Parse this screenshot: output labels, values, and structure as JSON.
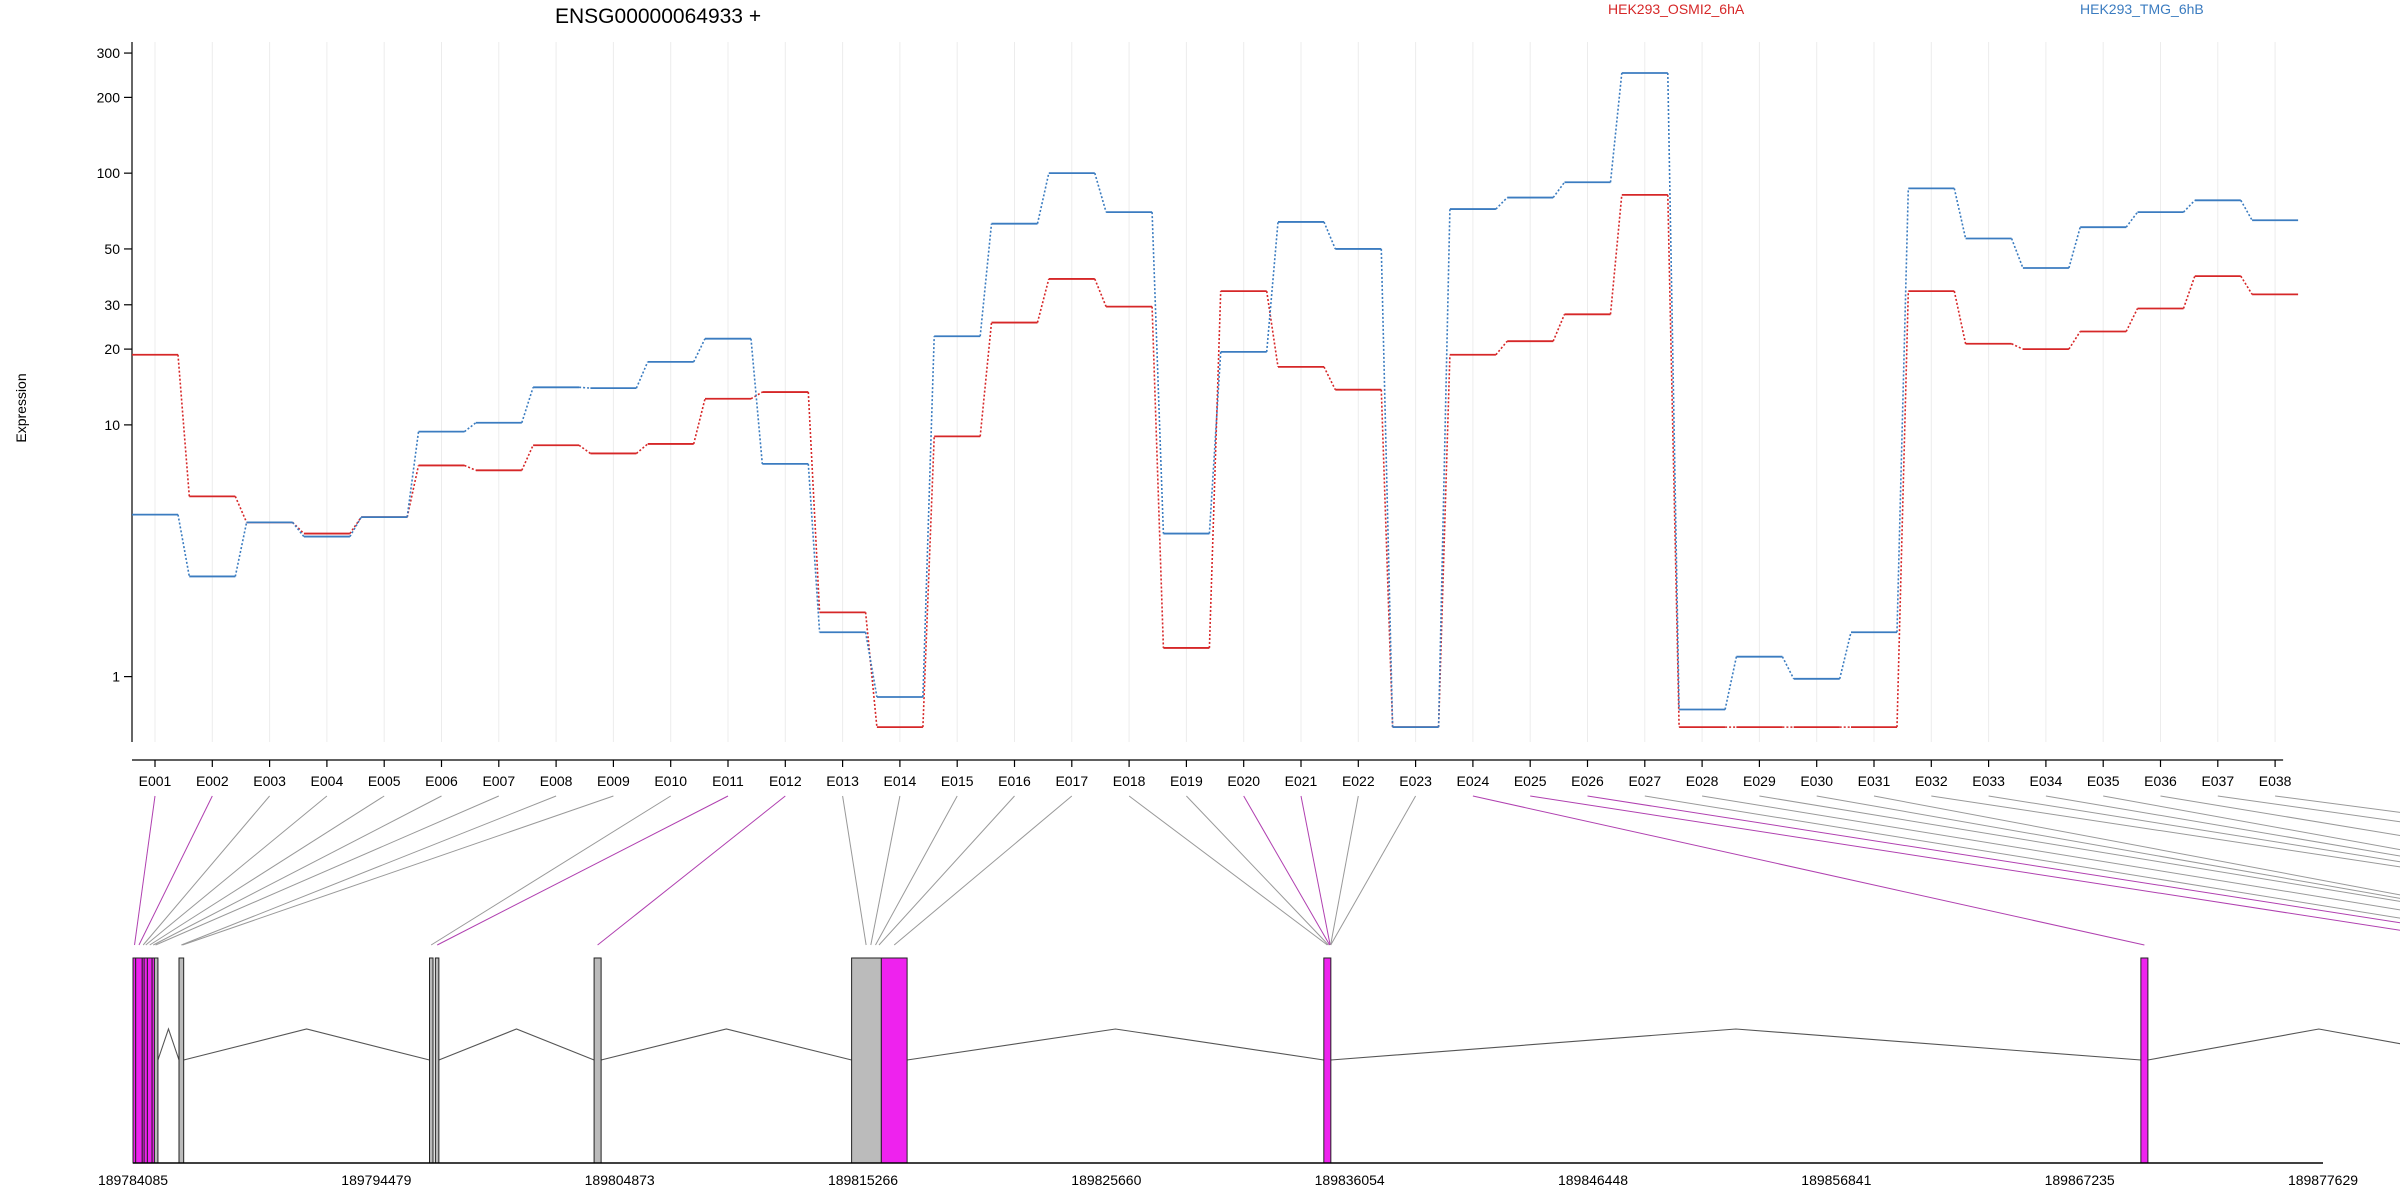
{
  "chart_data": {
    "type": "line",
    "title": "ENSG00000064933 +",
    "ylabel": "Expression",
    "yscale": "log",
    "ylim": [
      0.56,
      320
    ],
    "yticks": [
      1,
      10,
      20,
      30,
      50,
      100,
      200,
      300
    ],
    "grid": "vertical lines at each exon",
    "legend_position": "top",
    "categories": [
      "E001",
      "E002",
      "E003",
      "E004",
      "E005",
      "E006",
      "E007",
      "E008",
      "E009",
      "E010",
      "E011",
      "E012",
      "E013",
      "E014",
      "E015",
      "E016",
      "E017",
      "E018",
      "E019",
      "E020",
      "E021",
      "E022",
      "E023",
      "E024",
      "E025",
      "E026",
      "E027",
      "E028",
      "E029",
      "E030",
      "E031",
      "E032",
      "E033",
      "E034",
      "E035",
      "E036",
      "E037",
      "E038"
    ],
    "series": [
      {
        "name": "HEK293_OSMI2_6hA",
        "color": "#d62728",
        "values": [
          19,
          5.2,
          4.1,
          3.7,
          4.3,
          6.9,
          6.6,
          8.3,
          7.7,
          8.4,
          12.7,
          13.5,
          1.8,
          0.63,
          9,
          25.5,
          38,
          29.5,
          1.3,
          34,
          17,
          13.8,
          0.63,
          19,
          21.5,
          27.5,
          82,
          0.63,
          0.63,
          0.63,
          0.63,
          34,
          21,
          20,
          23.5,
          29,
          39,
          33
        ]
      },
      {
        "name": "HEK293_TMG_6hB",
        "color": "#3b7cc0",
        "values": [
          4.4,
          2.5,
          4.1,
          3.6,
          4.3,
          9.4,
          10.2,
          14.1,
          14,
          17.8,
          22,
          7,
          1.5,
          0.83,
          22.5,
          63,
          100,
          70,
          3.7,
          19.5,
          64,
          50,
          0.63,
          72,
          80,
          92,
          250,
          0.74,
          1.2,
          0.98,
          1.5,
          87,
          55,
          42,
          61,
          70,
          78,
          65
        ]
      }
    ],
    "genomic_axis": {
      "tick_labels": [
        "189784085",
        "189794479",
        "189804873",
        "189815266",
        "189825660",
        "189836054",
        "189846448",
        "189856841",
        "189867235",
        "189877629"
      ],
      "exon_segments": [
        {
          "start": 189784085,
          "end": 189784200,
          "fill": "#ee22ee"
        },
        {
          "start": 189784200,
          "end": 189784480,
          "fill": "#ee22ee"
        },
        {
          "start": 189784480,
          "end": 189784560,
          "fill": "#ee22ee"
        },
        {
          "start": 189784560,
          "end": 189784700,
          "fill": "#ee22ee"
        },
        {
          "start": 189784700,
          "end": 189784900,
          "fill": "#ee22ee"
        },
        {
          "start": 189784900,
          "end": 189785000,
          "fill": "#ee22ee"
        },
        {
          "start": 189785000,
          "end": 189785150,
          "fill": "#bbbbbb"
        },
        {
          "start": 189786050,
          "end": 189786250,
          "fill": "#bbbbbb"
        },
        {
          "start": 189796750,
          "end": 189796900,
          "fill": "#bbbbbb"
        },
        {
          "start": 189797000,
          "end": 189797150,
          "fill": "#bbbbbb"
        },
        {
          "start": 189803780,
          "end": 189804080,
          "fill": "#bbbbbb"
        },
        {
          "start": 189814780,
          "end": 189816050,
          "fill": "#bbbbbb"
        },
        {
          "start": 189816050,
          "end": 189817150,
          "fill": "#ee22ee"
        },
        {
          "start": 189834950,
          "end": 189835250,
          "fill": "#ee22ee"
        },
        {
          "start": 189869850,
          "end": 189870150,
          "fill": "#ee22ee"
        },
        {
          "start": 189884750,
          "end": 189885050,
          "fill": "#ee22ee"
        },
        {
          "start": 189886850,
          "end": 189887150,
          "fill": "#ee22ee"
        },
        {
          "start": 189887150,
          "end": 189888950,
          "fill": "#ee22ee"
        },
        {
          "start": 189889950,
          "end": 189890200,
          "fill": "#bbbbbb"
        },
        {
          "start": 189892150,
          "end": 189892350,
          "fill": "#bbbbbb"
        },
        {
          "start": 189902900,
          "end": 189903100,
          "fill": "#bbbbbb"
        },
        {
          "start": 189903100,
          "end": 189903300,
          "fill": "#bbbbbb"
        },
        {
          "start": 189903300,
          "end": 189903500,
          "fill": "#bbbbbb"
        },
        {
          "start": 189909200,
          "end": 189909400,
          "fill": "#bbbbbb"
        },
        {
          "start": 189918000,
          "end": 189918200,
          "fill": "#bbbbbb"
        },
        {
          "start": 189924000,
          "end": 189924550,
          "fill": "#bbbbbb"
        }
      ],
      "exon_positions": [
        189784150,
        189784340,
        189784520,
        189784630,
        189784800,
        189784950,
        189785050,
        189786150,
        189786200,
        189796820,
        189797080,
        189803930,
        189815400,
        189815600,
        189815800,
        189815950,
        189816600,
        189835100,
        189835150,
        189835200,
        189835220,
        189835240,
        189835245,
        189870000,
        189885000,
        189887000,
        189888000,
        189890100,
        189892250,
        189892270,
        189892290,
        189903000,
        189903200,
        189903350,
        189903450,
        189909300,
        189918100,
        189924300
      ],
      "highlighted_exons": [
        "E001",
        "E002",
        "E011",
        "E012",
        "E020",
        "E021",
        "E024",
        "E025",
        "E026"
      ],
      "link_colors": {
        "normal": "#999999",
        "highlighted": "#b040b0"
      }
    }
  }
}
